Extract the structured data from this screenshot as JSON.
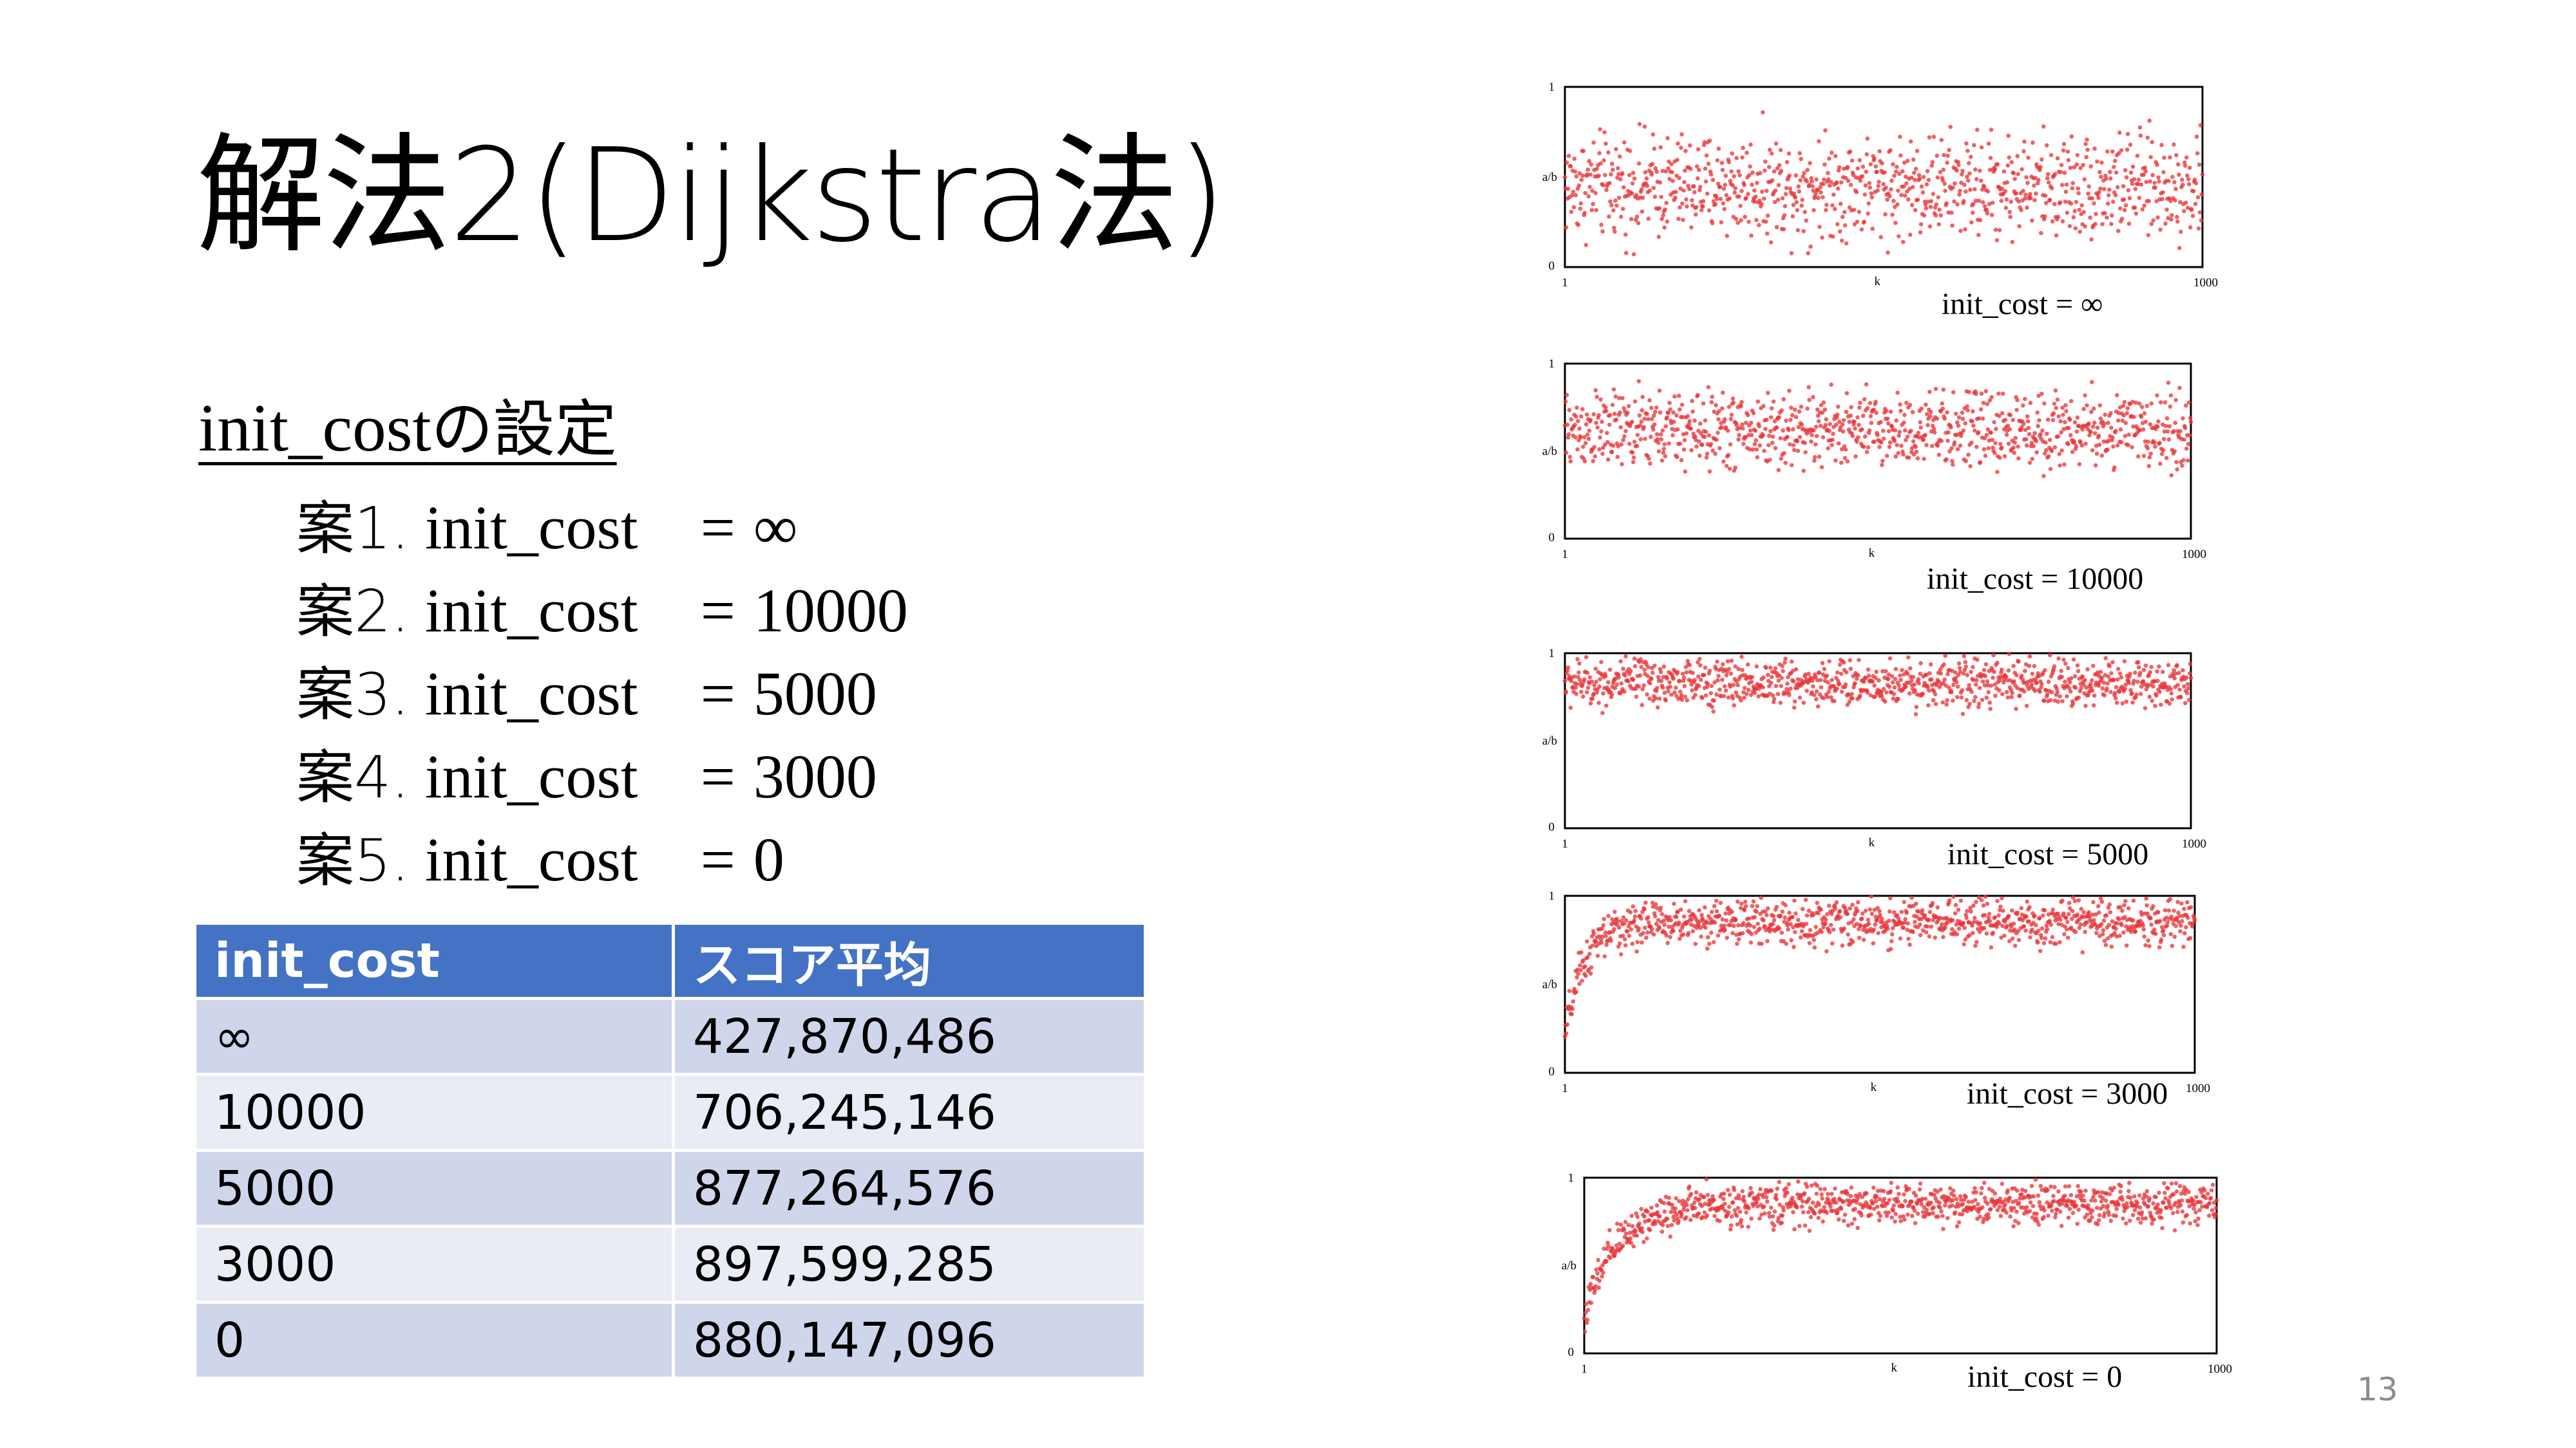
{
  "slide": {
    "title": "解法2(Dijkstra法)",
    "heading_en": "init_cost",
    "heading_jp": "の設定",
    "page_number": "13"
  },
  "options": [
    {
      "plan": "案1.",
      "name": "init_cost",
      "eq": "=",
      "value": "∞"
    },
    {
      "plan": "案2.",
      "name": "init_cost",
      "eq": "=",
      "value": "10000"
    },
    {
      "plan": "案3.",
      "name": "init_cost",
      "eq": "=",
      "value": "5000"
    },
    {
      "plan": "案4.",
      "name": "init_cost",
      "eq": "=",
      "value": "3000"
    },
    {
      "plan": "案5.",
      "name": "init_cost",
      "eq": "=",
      "value": "0"
    }
  ],
  "table": {
    "headers": [
      "init_cost",
      "スコア平均"
    ],
    "rows": [
      [
        "∞",
        "427,870,486"
      ],
      [
        "10000",
        "706,245,146"
      ],
      [
        "5000",
        "877,264,576"
      ],
      [
        "3000",
        "897,599,285"
      ],
      [
        "0",
        "880,147,096"
      ]
    ]
  },
  "chart_data": [
    {
      "type": "scatter",
      "caption": "init_cost = ∞",
      "xlabel": "k",
      "ylabel": "a/b",
      "x_ticks": [
        "1",
        "1000"
      ],
      "y_ticks": [
        "0",
        "1"
      ],
      "xlim": [
        1,
        1000
      ],
      "ylim": [
        0,
        1
      ],
      "point_color": "#e8363a",
      "n_points": 1000,
      "mean": 0.45,
      "spread": 0.42,
      "ramp": 0,
      "grid": false
    },
    {
      "type": "scatter",
      "caption": "init_cost = 10000",
      "xlabel": "k",
      "ylabel": "a/b",
      "x_ticks": [
        "1",
        "1000"
      ],
      "y_ticks": [
        "0",
        "1"
      ],
      "xlim": [
        1,
        1000
      ],
      "ylim": [
        0,
        1
      ],
      "point_color": "#e8363a",
      "n_points": 1000,
      "mean": 0.62,
      "spread": 0.32,
      "ramp": 0,
      "grid": false
    },
    {
      "type": "scatter",
      "caption": "init_cost = 5000",
      "xlabel": "k",
      "ylabel": "a/b",
      "x_ticks": [
        "1",
        "1000"
      ],
      "y_ticks": [
        "0",
        "1"
      ],
      "xlim": [
        1,
        1000
      ],
      "ylim": [
        0,
        1
      ],
      "point_color": "#e8363a",
      "n_points": 1000,
      "mean": 0.83,
      "spread": 0.2,
      "ramp": 0,
      "grid": false
    },
    {
      "type": "scatter",
      "caption": "init_cost = 3000",
      "xlabel": "k",
      "ylabel": "a/b",
      "x_ticks": [
        "1",
        "1000"
      ],
      "y_ticks": [
        "0",
        "1"
      ],
      "xlim": [
        1,
        1000
      ],
      "ylim": [
        0,
        1
      ],
      "point_color": "#e8363a",
      "n_points": 1000,
      "mean": 0.85,
      "spread": 0.18,
      "ramp": 30,
      "grid": false
    },
    {
      "type": "scatter",
      "caption": "init_cost = 0",
      "xlabel": "k",
      "ylabel": "a/b",
      "x_ticks": [
        "1",
        "1000"
      ],
      "y_ticks": [
        "0",
        "1"
      ],
      "xlim": [
        1,
        1000
      ],
      "ylim": [
        0,
        1
      ],
      "point_color": "#e8363a",
      "n_points": 1000,
      "mean": 0.85,
      "spread": 0.17,
      "ramp": 50,
      "grid": false
    }
  ]
}
